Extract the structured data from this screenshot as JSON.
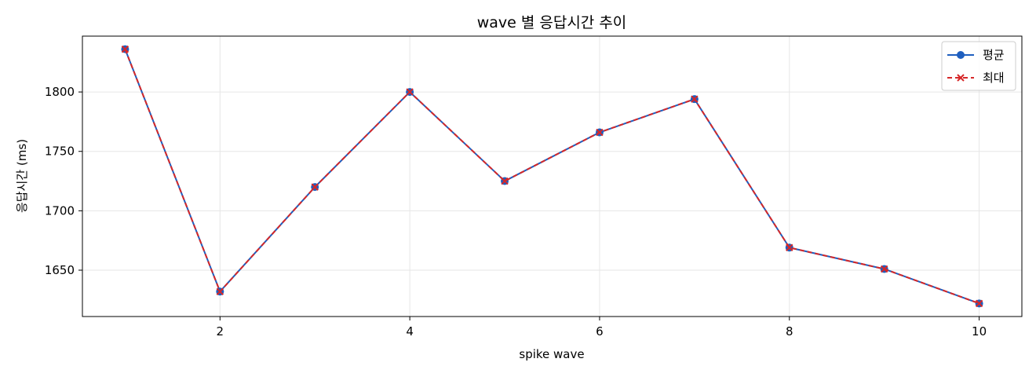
{
  "chart_data": {
    "type": "line",
    "title": "wave 별 응답시간 추이",
    "xlabel": "spike wave",
    "ylabel": "응답시간 (ms)",
    "x": [
      1,
      2,
      3,
      4,
      5,
      6,
      7,
      8,
      9,
      10
    ],
    "xlim": [
      0.55,
      10.45
    ],
    "ylim": [
      1611,
      1847
    ],
    "xticks": [
      2,
      4,
      6,
      8,
      10
    ],
    "yticks": [
      1650,
      1700,
      1750,
      1800
    ],
    "grid": true,
    "legend_position": "top-right",
    "series": [
      {
        "name": "평균",
        "values": [
          1836,
          1632,
          1720,
          1800,
          1725,
          1766,
          1794,
          1669,
          1651,
          1622
        ],
        "color": "#1f5fbf",
        "line_style": "solid",
        "marker": "circle"
      },
      {
        "name": "최대",
        "values": [
          1836,
          1632,
          1720,
          1800,
          1725,
          1766,
          1794,
          1669,
          1651,
          1622
        ],
        "color": "#d62728",
        "line_style": "dashed",
        "marker": "x"
      }
    ]
  }
}
